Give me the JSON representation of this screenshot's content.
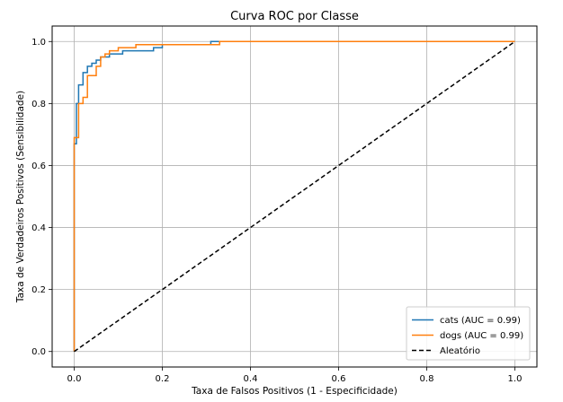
{
  "chart_data": {
    "type": "line",
    "title": "Curva ROC por Classe",
    "xlabel": "Taxa de Falsos Positivos (1 - Especificidade)",
    "ylabel": "Taxa de Verdadeiros Positivos (Sensibilidade)",
    "xlim": [
      -0.05,
      1.05
    ],
    "ylim": [
      -0.05,
      1.05
    ],
    "x_ticks": [
      0.0,
      0.2,
      0.4,
      0.6,
      0.8,
      1.0
    ],
    "y_ticks": [
      0.0,
      0.2,
      0.4,
      0.6,
      0.8,
      1.0
    ],
    "x_tick_labels": [
      "0.0",
      "0.2",
      "0.4",
      "0.6",
      "0.8",
      "1.0"
    ],
    "y_tick_labels": [
      "0.0",
      "0.2",
      "0.4",
      "0.6",
      "0.8",
      "1.0"
    ],
    "grid": true,
    "legend_position": "lower-right",
    "series": [
      {
        "name": "cats (AUC = 0.99)",
        "color": "#1f77b4",
        "style": "solid",
        "x": [
          0.0,
          0.0,
          0.005,
          0.005,
          0.01,
          0.01,
          0.02,
          0.02,
          0.03,
          0.03,
          0.04,
          0.04,
          0.05,
          0.05,
          0.06,
          0.06,
          0.08,
          0.08,
          0.11,
          0.11,
          0.18,
          0.18,
          0.2,
          0.2,
          0.31,
          0.31,
          0.33,
          0.33,
          1.0
        ],
        "y": [
          0.0,
          0.67,
          0.67,
          0.8,
          0.8,
          0.86,
          0.86,
          0.9,
          0.9,
          0.92,
          0.92,
          0.93,
          0.93,
          0.94,
          0.94,
          0.95,
          0.95,
          0.96,
          0.96,
          0.97,
          0.97,
          0.98,
          0.98,
          0.99,
          0.99,
          1.0,
          1.0,
          1.0,
          1.0
        ]
      },
      {
        "name": "dogs (AUC = 0.99)",
        "color": "#ff7f0e",
        "style": "solid",
        "x": [
          0.0,
          0.0,
          0.01,
          0.01,
          0.02,
          0.02,
          0.03,
          0.03,
          0.05,
          0.05,
          0.06,
          0.06,
          0.07,
          0.07,
          0.08,
          0.08,
          0.1,
          0.1,
          0.14,
          0.14,
          0.33,
          0.33,
          1.0
        ],
        "y": [
          0.0,
          0.69,
          0.69,
          0.8,
          0.8,
          0.82,
          0.82,
          0.89,
          0.89,
          0.92,
          0.92,
          0.95,
          0.95,
          0.96,
          0.96,
          0.97,
          0.97,
          0.98,
          0.98,
          0.99,
          0.99,
          1.0,
          1.0
        ]
      },
      {
        "name": "Aleatório",
        "color": "#000000",
        "style": "dashed",
        "x": [
          0.0,
          1.0
        ],
        "y": [
          0.0,
          1.0
        ]
      }
    ]
  }
}
